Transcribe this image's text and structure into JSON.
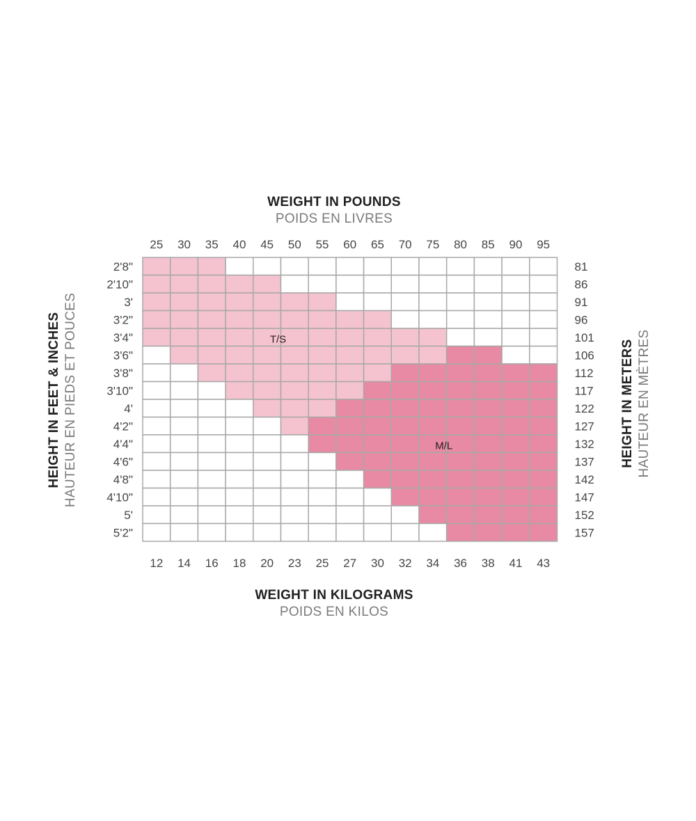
{
  "chart_data": {
    "type": "heatmap",
    "top_title": "WEIGHT IN POUNDS",
    "top_subtitle": "POIDS EN LIVRES",
    "bottom_title": "WEIGHT IN KILOGRAMS",
    "bottom_subtitle": "POIDS EN KILOS",
    "left_title": "HEIGHT IN FEET & INCHES",
    "left_subtitle": "HAUTEUR EN PIEDS ET POUCES",
    "right_title": "HEIGHT IN METERS",
    "right_subtitle": "HAUTEUR EN MÈTRES",
    "x_pounds": [
      "25",
      "30",
      "35",
      "40",
      "45",
      "50",
      "55",
      "60",
      "65",
      "70",
      "75",
      "80",
      "85",
      "90",
      "95"
    ],
    "x_kilograms": [
      "12",
      "14",
      "16",
      "18",
      "20",
      "23",
      "25",
      "27",
      "30",
      "32",
      "34",
      "36",
      "38",
      "41",
      "43"
    ],
    "y_feet_inches": [
      "2'8\"",
      "2'10\"",
      "3'",
      "3'2\"",
      "3'4\"",
      "3'6\"",
      "3'8\"",
      "3'10\"",
      "4'",
      "4'2\"",
      "4'4\"",
      "4'6\"",
      "4'8\"",
      "4'10\"",
      "5'",
      "5'2\""
    ],
    "y_centimeters": [
      "81",
      "86",
      "91",
      "96",
      "101",
      "106",
      "112",
      "117",
      "122",
      "127",
      "132",
      "137",
      "142",
      "147",
      "152",
      "157"
    ],
    "zones": [
      {
        "label": "T/S",
        "color": "#f5c3d0",
        "row_ranges": [
          [
            0,
            2
          ],
          [
            0,
            4
          ],
          [
            0,
            6
          ],
          [
            0,
            8
          ],
          [
            0,
            10
          ],
          [
            1,
            10
          ],
          [
            2,
            8
          ],
          [
            3,
            7
          ],
          [
            4,
            6
          ],
          [
            5,
            5
          ]
        ]
      },
      {
        "label": "M/L",
        "color": "#e88aa3",
        "row_ranges": [
          null,
          null,
          null,
          null,
          null,
          [
            10,
            12
          ],
          [
            9,
            14
          ],
          [
            8,
            14
          ],
          [
            7,
            14
          ],
          [
            6,
            14
          ],
          [
            6,
            14
          ],
          [
            7,
            14
          ],
          [
            8,
            14
          ],
          [
            9,
            14
          ],
          [
            10,
            14
          ],
          [
            11,
            14
          ]
        ]
      }
    ],
    "empty_color": "#ffffff",
    "grid_color": "#a8a8a8"
  }
}
